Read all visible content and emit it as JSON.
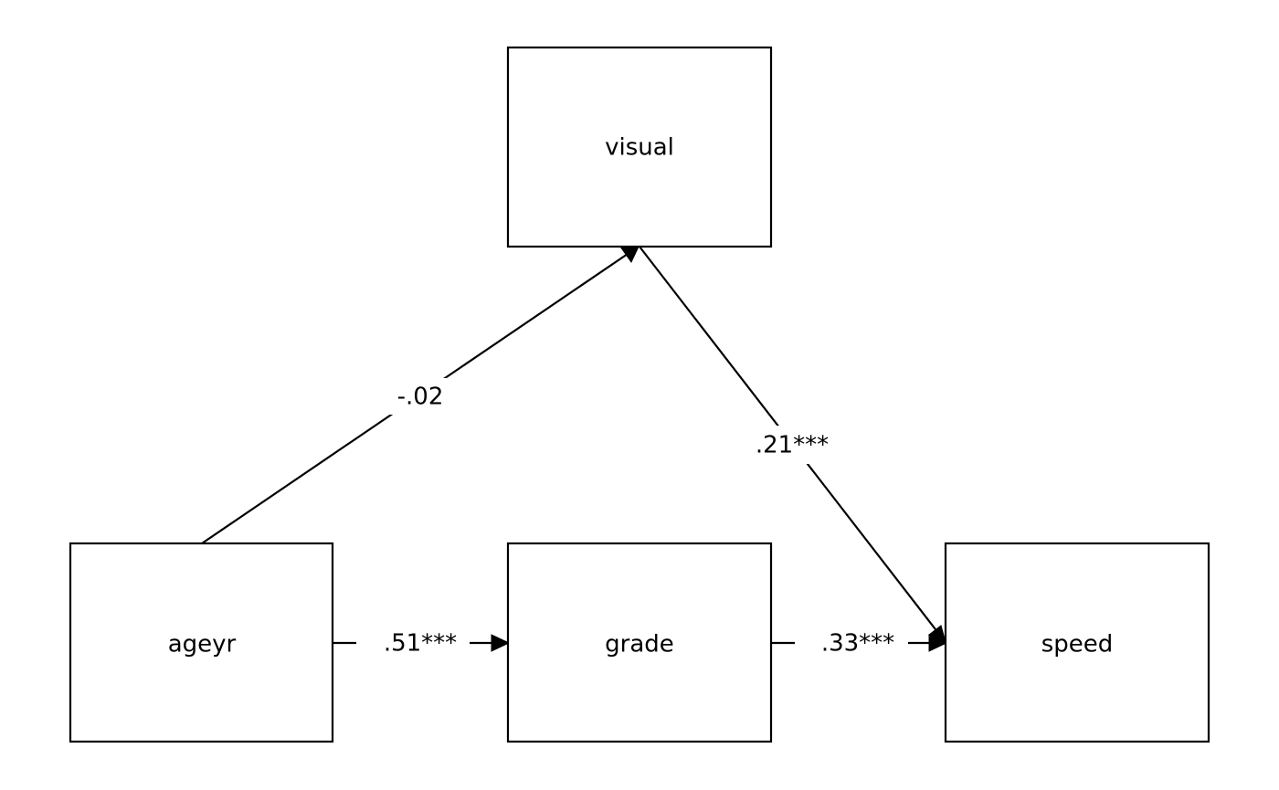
{
  "diagram": {
    "nodes": {
      "visual": {
        "label": "visual"
      },
      "ageyr": {
        "label": "ageyr"
      },
      "grade": {
        "label": "grade"
      },
      "speed": {
        "label": "speed"
      }
    },
    "edges": {
      "ageyr_visual": {
        "from": "ageyr",
        "to": "visual",
        "label": "-.02"
      },
      "visual_speed": {
        "from": "visual",
        "to": "speed",
        "label": ".21***"
      },
      "ageyr_grade": {
        "from": "ageyr",
        "to": "grade",
        "label": ".51***"
      },
      "grade_speed": {
        "from": "grade",
        "to": "speed",
        "label": ".33***"
      }
    },
    "colors": {
      "stroke": "#000000",
      "background": "#ffffff"
    }
  }
}
